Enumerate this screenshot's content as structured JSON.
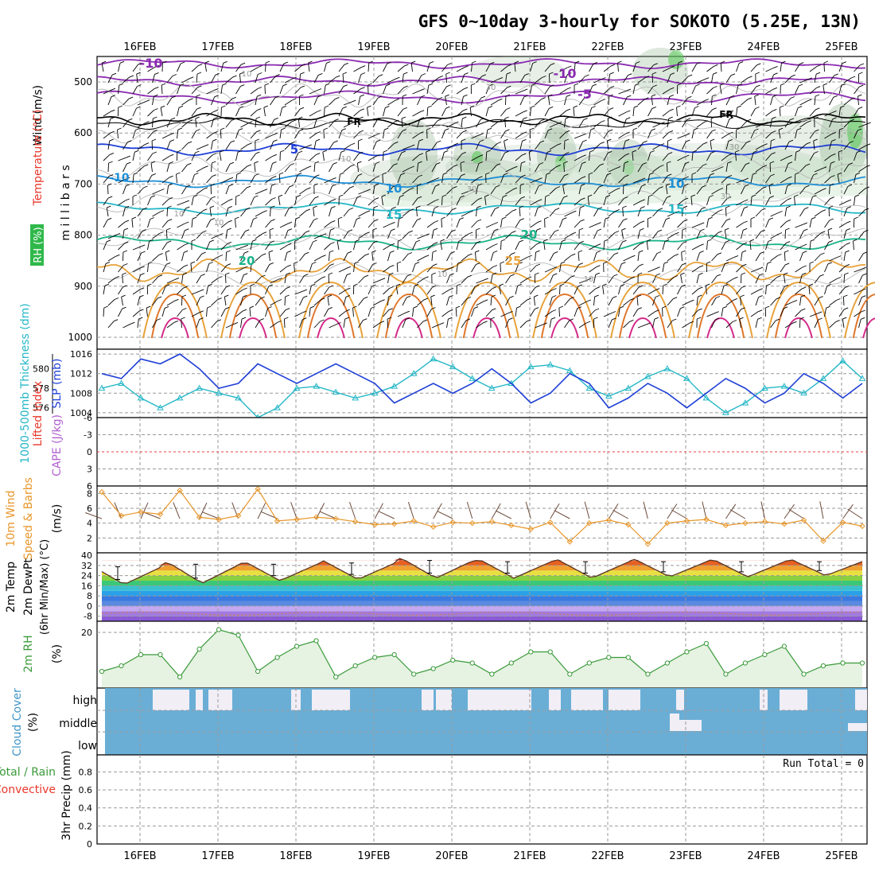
{
  "title": "GFS 0~10day 3-hourly for SOKOTO (5.25E, 13N)",
  "dates": [
    "16FEB",
    "17FEB",
    "18FEB",
    "19FEB",
    "20FEB",
    "21FEB",
    "22FEB",
    "23FEB",
    "24FEB",
    "25FEB"
  ],
  "colors": {
    "temp_label": "#e8372a",
    "wind_label": "#a05a00",
    "rh_label": "#3a9a3a",
    "slp_label": "#1f3fd6",
    "thick_label": "#25b7c7",
    "cape_label": "#b060d0",
    "cloud": "#6aaed6",
    "cloud_gap": "#f1eef6"
  },
  "panels": {
    "upper": {
      "ylabel_wind": "Wind (m/s)",
      "ylabel_temp": "Temperature (°C)",
      "ylabel_mb": "m i l l i b a r s",
      "ylabel_rh": "RH (%)",
      "levels": [
        "500",
        "600",
        "700",
        "800",
        "900",
        "1000"
      ],
      "contour_labels": {
        "temp": [
          "-10",
          "-10",
          "-5",
          "FR",
          "FR",
          "5",
          "-10",
          "10",
          "10",
          "15",
          "15",
          "20",
          "20",
          "25"
        ],
        "rh": [
          "10",
          "30",
          "10",
          "30",
          "30",
          "10",
          "10",
          "30",
          "10",
          "10"
        ]
      }
    },
    "slp": {
      "ylabel_thick": "1000-500mb Thickness (dm)",
      "ylabel_slp": "SLP (mb)",
      "ticks_thick": [
        "580",
        "578",
        "576"
      ],
      "ticks_slp": [
        "1016",
        "1012",
        "1008",
        "1004"
      ]
    },
    "li": {
      "ylabel_li": "Lifted Index",
      "ylabel_cape": "CAPE (J/kg)",
      "ticks": [
        "-6",
        "-3",
        "0",
        "3",
        "6"
      ]
    },
    "wind": {
      "ylabel_a": "10m Wind",
      "ylabel_b": "Speed & Barbs",
      "units": "(m/s)",
      "ticks": [
        "8",
        "6",
        "4",
        "2"
      ]
    },
    "temp": {
      "ylabel_a": "2m Temp",
      "ylabel_b": "2m DewPt",
      "ylabel_c": "(6hr Min/Max) (°C)",
      "ticks": [
        "40",
        "32",
        "24",
        "16",
        "8",
        "0",
        "-8"
      ]
    },
    "rh": {
      "ylabel": "2m RH",
      "units": "(%)",
      "ticks": [
        "20"
      ]
    },
    "cloud": {
      "ylabel": "Cloud Cover",
      "units": "(%)",
      "levels": [
        "high",
        "middle",
        "low"
      ]
    },
    "precip": {
      "ylabel_a": "Total / Rain",
      "ylabel_b": "Convective",
      "ylabel_c": "3hr Precip (mm)",
      "ticks": [
        "0.8",
        "0.6",
        "0.4",
        "0.2",
        "0"
      ],
      "run_total": "Run Total = 0"
    }
  },
  "chart_data": [
    {
      "type": "line",
      "title": "GFS 0~10day 3-hourly for SOKOTO (5.25E, 13N)",
      "panel": "SLP and 1000-500mb thickness",
      "x": [
        "15FEB12",
        "15FEB18",
        "16FEB00",
        "16FEB06",
        "16FEB12",
        "16FEB18",
        "17FEB00",
        "17FEB06",
        "17FEB12",
        "17FEB18",
        "18FEB00",
        "18FEB06",
        "18FEB12",
        "18FEB18",
        "19FEB00",
        "19FEB06",
        "19FEB12",
        "19FEB18",
        "20FEB00",
        "20FEB06",
        "20FEB12",
        "20FEB18",
        "21FEB00",
        "21FEB06",
        "21FEB12",
        "21FEB18",
        "22FEB00",
        "22FEB06",
        "22FEB12",
        "22FEB18",
        "23FEB00",
        "23FEB06",
        "23FEB12",
        "23FEB18",
        "24FEB00",
        "24FEB06",
        "24FEB12",
        "24FEB18",
        "25FEB00",
        "25FEB06"
      ],
      "series": [
        {
          "name": "SLP (mb)",
          "values": [
            1012,
            1011,
            1015,
            1014,
            1016,
            1013,
            1009,
            1010,
            1014,
            1012,
            1010,
            1012,
            1014,
            1012,
            1010,
            1006,
            1008,
            1010,
            1008,
            1010,
            1013,
            1010,
            1006,
            1008,
            1012,
            1010,
            1005,
            1007,
            1010,
            1008,
            1005,
            1008,
            1011,
            1009,
            1006,
            1008,
            1012,
            1010,
            1007,
            1010
          ]
        },
        {
          "name": "1000-500mb Thickness (dm)",
          "values": [
            578.0,
            578.5,
            577.0,
            576.0,
            577.0,
            578.0,
            577.5,
            577.0,
            575.0,
            576.0,
            578.0,
            578.2,
            577.6,
            577.0,
            577.5,
            578.2,
            579.5,
            581.0,
            580.2,
            579.0,
            578.0,
            578.5,
            580.2,
            580.4,
            579.8,
            578.0,
            577.2,
            578.0,
            579.2,
            580.0,
            579.0,
            577.0,
            575.5,
            576.5,
            578.0,
            578.2,
            577.5,
            579.0,
            580.8,
            579.0
          ]
        }
      ],
      "ylim_slp": [
        1003,
        1017
      ],
      "ylim_thick": [
        575,
        582
      ],
      "grid": true
    },
    {
      "type": "line",
      "panel": "10m Wind Speed",
      "ylabel": "(m/s)",
      "x": [
        "15FEB12",
        "15FEB18",
        "16FEB00",
        "16FEB06",
        "16FEB12",
        "16FEB18",
        "17FEB00",
        "17FEB06",
        "17FEB12",
        "17FEB18",
        "18FEB00",
        "18FEB06",
        "18FEB12",
        "18FEB18",
        "19FEB00",
        "19FEB06",
        "19FEB12",
        "19FEB18",
        "20FEB00",
        "20FEB06",
        "20FEB12",
        "20FEB18",
        "21FEB00",
        "21FEB06",
        "21FEB12",
        "21FEB18",
        "22FEB00",
        "22FEB06",
        "22FEB12",
        "22FEB18",
        "23FEB00",
        "23FEB06",
        "23FEB12",
        "23FEB18",
        "24FEB00",
        "24FEB06",
        "24FEB12",
        "24FEB18",
        "25FEB00",
        "25FEB06"
      ],
      "series": [
        {
          "name": "10m Wind Speed",
          "values": [
            8.2,
            5.0,
            5.5,
            5.2,
            8.4,
            4.8,
            4.5,
            5.0,
            8.6,
            4.3,
            4.5,
            4.8,
            4.6,
            4.2,
            3.8,
            3.9,
            4.3,
            3.5,
            4.1,
            4.0,
            4.2,
            3.7,
            3.2,
            4.1,
            1.5,
            4.0,
            4.4,
            3.8,
            1.2,
            4.0,
            4.3,
            4.5,
            3.7,
            4.0,
            4.2,
            3.9,
            4.4,
            1.6,
            4.1,
            3.6
          ]
        }
      ],
      "ylim": [
        0,
        9
      ],
      "grid": true
    },
    {
      "type": "line",
      "panel": "2m Temp / 2m DewPt",
      "ylabel": "(°C)",
      "x": [
        "16FEB",
        "17FEB",
        "18FEB",
        "19FEB",
        "20FEB",
        "21FEB",
        "22FEB",
        "23FEB",
        "24FEB",
        "25FEB"
      ],
      "series": [
        {
          "name": "2m Temp max",
          "values": [
            33,
            35,
            35,
            36,
            38,
            37,
            37,
            37,
            37,
            37
          ]
        },
        {
          "name": "2m Temp min",
          "values": [
            17,
            18,
            20,
            21,
            22,
            22,
            22,
            23,
            23,
            24
          ]
        },
        {
          "name": "2m DewPt",
          "values": [
            -6,
            -7,
            -6,
            -5,
            -6,
            -6,
            -5,
            -6,
            -5,
            -6
          ]
        }
      ],
      "ylim": [
        -12,
        42
      ],
      "grid": true
    },
    {
      "type": "line",
      "panel": "2m RH",
      "ylabel": "(%)",
      "x": [
        "15FEB12",
        "15FEB18",
        "16FEB00",
        "16FEB06",
        "16FEB12",
        "16FEB18",
        "17FEB00",
        "17FEB06",
        "17FEB12",
        "17FEB18",
        "18FEB00",
        "18FEB06",
        "18FEB12",
        "18FEB18",
        "19FEB00",
        "19FEB06",
        "19FEB12",
        "19FEB18",
        "20FEB00",
        "20FEB06",
        "20FEB12",
        "20FEB18",
        "21FEB00",
        "21FEB06",
        "21FEB12",
        "21FEB18",
        "22FEB00",
        "22FEB06",
        "22FEB12",
        "22FEB18",
        "23FEB00",
        "23FEB06",
        "23FEB12",
        "23FEB18",
        "24FEB00",
        "24FEB06",
        "24FEB12",
        "24FEB18",
        "25FEB00",
        "25FEB06"
      ],
      "series": [
        {
          "name": "2m RH",
          "values": [
            6,
            8,
            12,
            12,
            4,
            14,
            21,
            19,
            6,
            11,
            15,
            17,
            4,
            8,
            11,
            12,
            5,
            7,
            10,
            9,
            5,
            9,
            13,
            13,
            5,
            9,
            11,
            11,
            5,
            9,
            13,
            16,
            5,
            9,
            12,
            15,
            5,
            8,
            9,
            9
          ]
        }
      ],
      "ylim": [
        0,
        24
      ],
      "grid": true
    }
  ]
}
